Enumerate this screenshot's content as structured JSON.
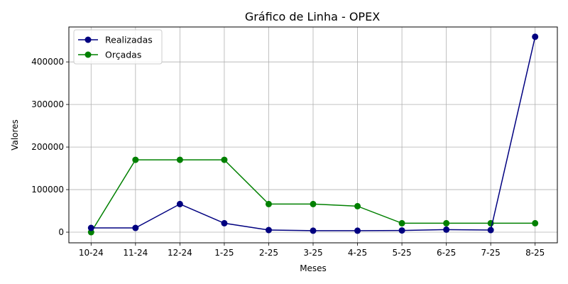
{
  "chart_data": {
    "type": "line",
    "title": "Gráfico de Linha - OPEX",
    "xlabel": "Meses",
    "ylabel": "Valores",
    "categories": [
      "10-24",
      "11-24",
      "12-24",
      "1-25",
      "2-25",
      "3-25",
      "4-25",
      "5-25",
      "6-25",
      "7-25",
      "8-25"
    ],
    "yticks": [
      0,
      100000,
      200000,
      300000,
      400000
    ],
    "ylim": [
      -25000,
      482000
    ],
    "grid": true,
    "legend_position": "top-left",
    "series": [
      {
        "name": "Realizadas",
        "color": "#000080",
        "values": [
          10000,
          10000,
          66000,
          21000,
          5000,
          3500,
          3500,
          4000,
          6000,
          5000,
          459000
        ]
      },
      {
        "name": "Orçadas",
        "color": "#008000",
        "values": [
          0,
          170000,
          170000,
          170000,
          66000,
          66000,
          61000,
          21000,
          21000,
          21000,
          21000
        ]
      }
    ]
  }
}
